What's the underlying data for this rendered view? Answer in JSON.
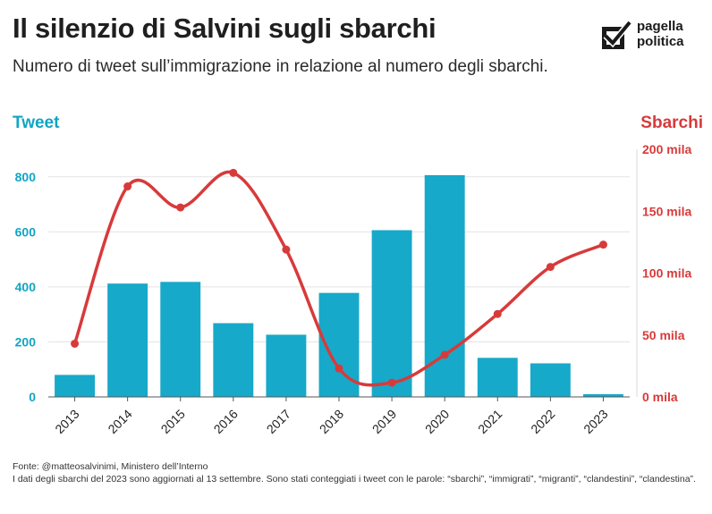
{
  "header": {
    "title": "Il silenzio di Salvini sugli sbarchi",
    "subtitle": "Numero di tweet sull’immigrazione in relazione al numero degli sbarchi."
  },
  "logo": {
    "line1": "pagella",
    "line2": "politica",
    "icon": "checkbox-check-icon"
  },
  "footer": {
    "source": "Fonte: @matteosalvinimi, Ministero dell’Interno",
    "note": "I dati degli sbarchi del 2023 sono aggiornati al 13 settembre. Sono stati conteggiati i tweet con le parole: “sbarchi”, “immigrati”, “migranti”, “clandestini”, “clandestina”."
  },
  "chart_data": {
    "type": "bar",
    "categories": [
      "2013",
      "2014",
      "2015",
      "2016",
      "2017",
      "2018",
      "2019",
      "2020",
      "2021",
      "2022",
      "2023"
    ],
    "series": [
      {
        "name": "Tweet",
        "type": "bar",
        "axis": "left",
        "values": [
          80,
          412,
          418,
          268,
          226,
          378,
          606,
          806,
          142,
          122,
          10
        ]
      },
      {
        "name": "Sbarchi",
        "type": "line",
        "axis": "right",
        "values": [
          43000,
          170000,
          153000,
          181000,
          119000,
          23000,
          11500,
          34000,
          67000,
          105000,
          123000
        ]
      }
    ],
    "left_axis": {
      "label": "Tweet",
      "ticks": [
        0,
        200,
        400,
        600,
        800
      ],
      "tick_labels": [
        "0",
        "200",
        "400",
        "600",
        "800"
      ],
      "range": [
        0,
        900
      ]
    },
    "right_axis": {
      "label": "Sbarchi",
      "ticks": [
        0,
        50000,
        100000,
        150000,
        200000
      ],
      "tick_labels": [
        "0 mila",
        "50 mila",
        "100 mila",
        "150 mila",
        "200 mila"
      ],
      "range": [
        0,
        200000
      ]
    },
    "grid": true,
    "colors": {
      "bar": "#17a9c9",
      "line": "#d83a3a",
      "left_axis": "#12a4c4",
      "right_axis": "#d83a3a",
      "grid": "#e3e3e3"
    }
  }
}
